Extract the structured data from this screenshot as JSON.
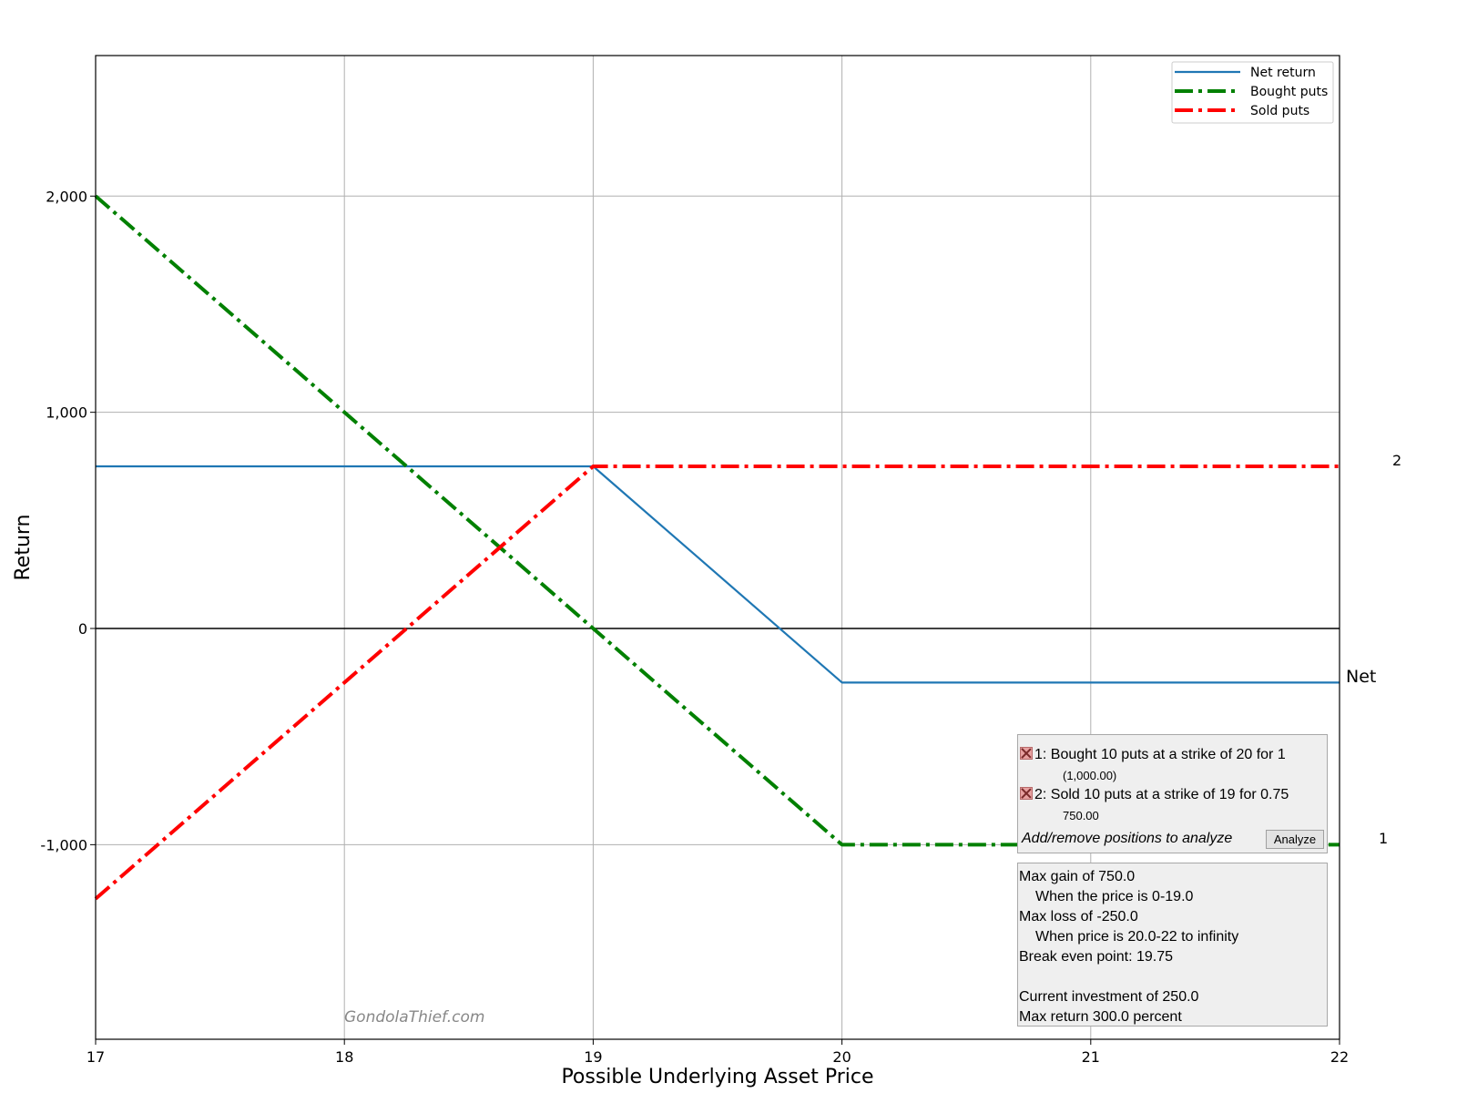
{
  "chart_data": {
    "type": "line",
    "title": "",
    "xlabel": "Possible Underlying Asset Price",
    "ylabel": "Return",
    "xlim": [
      17,
      22
    ],
    "ylim": [
      -1900,
      2650
    ],
    "x_ticks": [
      17,
      18,
      19,
      20,
      21,
      22
    ],
    "y_ticks": [
      -1000,
      0,
      1000,
      2000
    ],
    "y_tick_labels": [
      "-1,000",
      "0",
      "1,000",
      "2,000"
    ],
    "grid": true,
    "legend_position": "top-right",
    "series": [
      {
        "name": "Net return",
        "color": "#1f77b4",
        "style": "solid",
        "x": [
          17,
          19,
          20,
          22
        ],
        "y": [
          750,
          750,
          -250,
          -250
        ]
      },
      {
        "name": "Bought puts",
        "color": "#008000",
        "style": "dashdot",
        "x": [
          17,
          20,
          22
        ],
        "y": [
          2000,
          -1000,
          -1000
        ]
      },
      {
        "name": "Sold puts",
        "color": "#ff0000",
        "style": "dashdot",
        "x": [
          17,
          19,
          22
        ],
        "y": [
          -1250,
          750,
          750
        ]
      }
    ],
    "line_end_labels": [
      {
        "text": "2",
        "y": 750
      },
      {
        "text": "Net",
        "y": -250
      },
      {
        "text": "1",
        "y": -1000
      }
    ],
    "watermark": "GondolaThief.com"
  },
  "positions_panel": {
    "positions": [
      {
        "label": "1: Bought 10 puts at a strike of 20 for 1",
        "value": "(1,000.00)"
      },
      {
        "label": "2: Sold 10 puts at a strike of 19 for 0.75",
        "value": "750.00"
      }
    ],
    "hint": "Add/remove positions to analyze",
    "analyze_label": "Analyze"
  },
  "summary_panel": {
    "lines": [
      "Max gain of 750.0",
      "When the price is 0-19.0",
      "Max loss of -250.0",
      "When price is 20.0-22 to infinity",
      "Break even point: 19.75",
      "",
      "Current investment of 250.0",
      "Max return 300.0 percent"
    ]
  }
}
